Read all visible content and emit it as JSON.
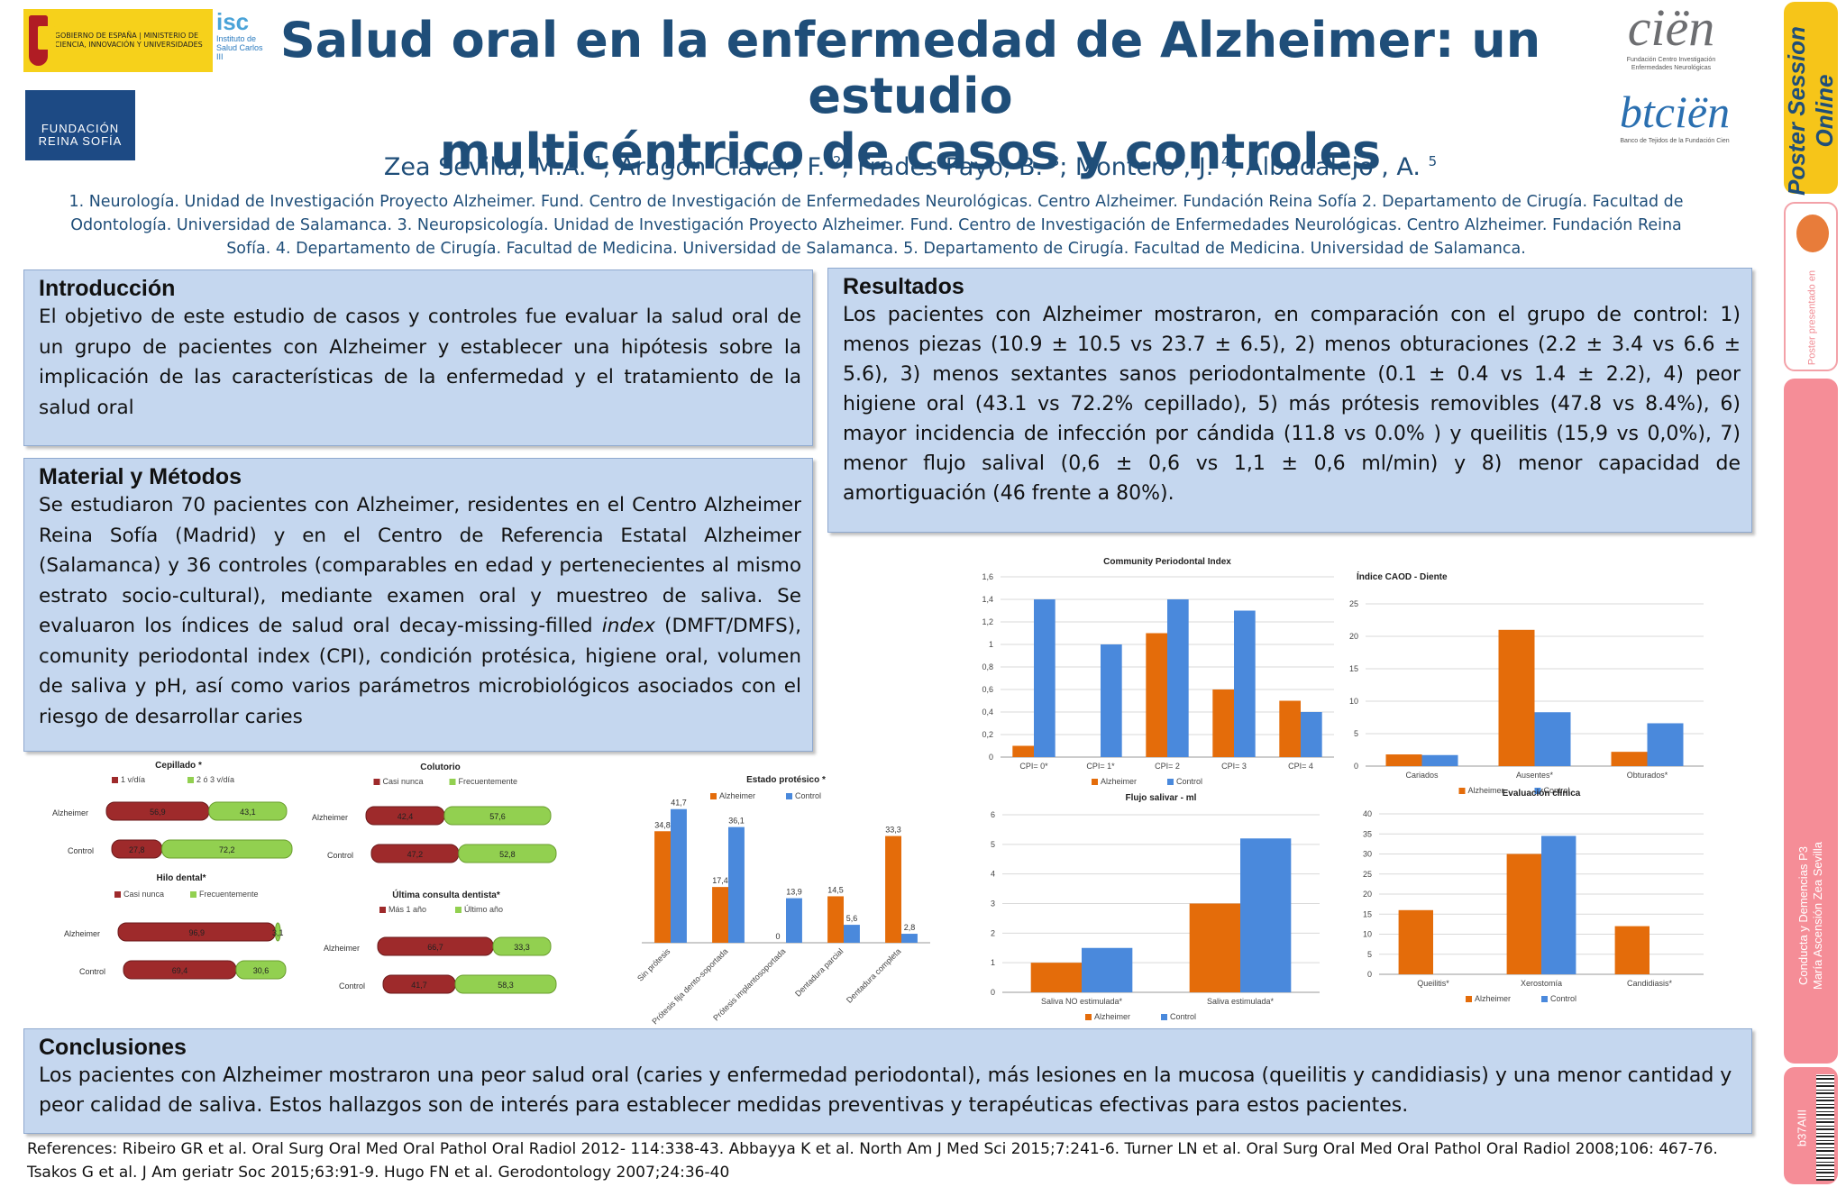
{
  "title_lines": [
    "Salud oral en la enfermedad de Alzheimer: un estudio",
    "multicéntrico de casos y controles"
  ],
  "authors": [
    {
      "name": "Zea Sevilla, M.A. ",
      "sup": "1"
    },
    {
      "name": "; Aragón Claver, F. ",
      "sup": "2"
    },
    {
      "name": "; Frades Payo, B. ",
      "sup": "3"
    },
    {
      "name": "; Montero , J. ",
      "sup": "4"
    },
    {
      "name": "; Albadalejo , A. ",
      "sup": "5"
    }
  ],
  "affiliations": "1. Neurología. Unidad de Investigación Proyecto Alzheimer. Fund. Centro de Investigación de Enfermedades Neurológicas. Centro Alzheimer. Fundación Reina Sofía 2. Departamento de Cirugía. Facultad de Odontología. Universidad de Salamanca. 3. Neuropsicología. Unidad de Investigación Proyecto Alzheimer. Fund. Centro de Investigación de Enfermedades Neurológicas. Centro Alzheimer. Fundación Reina Sofía. 4. Departamento de Cirugía. Facultad de Medicina. Universidad de Salamanca. 5. Departamento de Cirugía. Facultad de Medicina. Universidad de Salamanca.",
  "logos": {
    "gobierno": "GOBIERNO DE ESPAÑA | MINISTERIO DE CIENCIA, INNOVACIÓN Y UNIVERSIDADES",
    "isciii_mark": "isc",
    "isciii": "Instituto de Salud Carlos III",
    "fundacion": "FUNDACIÓN REINA SOFÍA",
    "cien": "ciën",
    "cien_sub": "Fundación Centro Investigación Enfermedades Neurológicas",
    "btcien": "btciën",
    "btcien_sub": "Banco de Tejidos de la Fundación Cien"
  },
  "intro": {
    "heading": "Introducción",
    "text": "El objetivo de este estudio de casos y controles fue evaluar la salud oral de un grupo de pacientes con Alzheimer y establecer una hipótesis sobre la implicación de las características de la enfermedad y el tratamiento de la salud oral"
  },
  "methods": {
    "heading": "Material y Métodos",
    "text_before": "Se estudiaron 70 pacientes con Alzheimer, residentes en el Centro Alzheimer Reina Sofía (Madrid) y en el Centro de Referencia  Estatal Alzheimer (Salamanca) y 36 controles (comparables en edad y pertenecientes al mismo estrato socio-cultural), mediante examen oral y muestreo de saliva. Se evaluaron los índices de salud oral decay-missing-filled ",
    "text_italic": "index",
    "text_after": " (DMFT/DMFS), comunity periodontal index (CPI), condición protésica, higiene oral, volumen de saliva y pH, así como varios parámetros microbiológicos asociados con el riesgo de desarrollar caries"
  },
  "results": {
    "heading": "Resultados",
    "text": "Los pacientes con Alzheimer mostraron, en comparación con el grupo de control: 1) menos piezas (10.9 ± 10.5 vs 23.7 ± 6.5), 2) menos obturaciones (2.2 ± 3.4 vs 6.6 ± 5.6), 3) menos sextantes sanos periodontalmente (0.1 ± 0.4 vs 1.4 ± 2.2), 4) peor higiene oral (43.1 vs 72.2% cepillado), 5) más prótesis removibles (47.8 vs 8.4%), 6) mayor incidencia de infección por cándida (11.8 vs 0.0% ) y queilitis (15,9 vs 0,0%), 7) menor flujo salival (0,6 ± 0,6 vs 1,1 ± 0,6 ml/min) y 8) menor capacidad de amortiguación (46 frente a 80%)."
  },
  "conclusions": {
    "heading": "Conclusiones",
    "text": "Los pacientes con Alzheimer mostraron una peor salud oral (caries y enfermedad periodontal), más lesiones en la mucosa (queilitis y candidiasis) y una menor cantidad y peor calidad de saliva. Estos hallazgos son de interés para establecer medidas preventivas y terapéuticas efectivas para estos pacientes."
  },
  "references": "References: Ribeiro GR et al. Oral Surg Oral Med Oral Pathol Oral Radiol 2012- 114:338-43. Abbayya K et al. North Am J Med Sci 2015;7:241-6. Turner LN et al. Oral Surg Oral Med Oral Pathol Oral Radiol 2008;106: 467-76. Tsakos G et al. J Am geriatr Soc 2015;63:91-9. Hugo FN et al. Gerodontology 2007;24:36-40",
  "sidebar": {
    "brand": "Poster Session Online",
    "presented": "Poster presentado en",
    "event": "Conducta y Demencias P3",
    "author": "María Ascensión Zea Sevilla",
    "code": "b37AIII"
  },
  "colors": {
    "alzheimer": "#e46c0a",
    "control": "#4a89dc",
    "casi_nunca": "#9e2a2b",
    "frecuente": "#92d050"
  },
  "chart_data": [
    {
      "id": "cpi",
      "type": "bar",
      "title": "Community Periodontal Index",
      "categories": [
        "CPI= 0*",
        "CPI= 1*",
        "CPI= 2",
        "CPI= 3",
        "CPI= 4"
      ],
      "series": [
        {
          "name": "Alzheimer",
          "values": [
            0.1,
            0,
            1.1,
            0.6,
            0.5
          ]
        },
        {
          "name": "Control",
          "values": [
            1.4,
            1.0,
            1.4,
            1.3,
            0.4
          ]
        }
      ],
      "ylim": [
        0,
        1.6
      ],
      "yticks": [
        "0",
        "0,2",
        "0,4",
        "0,6",
        "0,8",
        "1",
        "1,2",
        "1,4",
        "1,6"
      ],
      "grid": true,
      "legend": "bottom"
    },
    {
      "id": "caod",
      "type": "bar",
      "title": "Índice CAOD - Diente",
      "categories": [
        "Cariados",
        "Ausentes*",
        "Obturados*"
      ],
      "series": [
        {
          "name": "Alzheimer",
          "values": [
            1.8,
            21,
            2.2
          ]
        },
        {
          "name": "Control",
          "values": [
            1.7,
            8.3,
            6.6
          ]
        }
      ],
      "ylim": [
        0,
        25
      ],
      "yticks": [
        "0",
        "5",
        "10",
        "15",
        "20",
        "25"
      ],
      "grid": true,
      "legend": "bottom"
    },
    {
      "id": "protesis",
      "type": "bar",
      "title": "Estado protésico *",
      "categories": [
        "Sin prótesis",
        "Prótesis fija dento-soportada",
        "Prótesis implantosoportada",
        "Dentadura parcial",
        "Dentadura completa"
      ],
      "series": [
        {
          "name": "Alzheimer",
          "values": [
            34.8,
            17.4,
            0,
            14.5,
            33.3
          ],
          "labels": [
            "34,8",
            "17,4",
            "0",
            "14,5",
            "33,3"
          ]
        },
        {
          "name": "Control",
          "values": [
            41.7,
            36.1,
            13.9,
            5.6,
            2.8
          ],
          "labels": [
            "41,7",
            "36,1",
            "13,9",
            "5,6",
            "2,8"
          ]
        }
      ],
      "ylim": [
        0,
        45
      ],
      "legend": "top"
    },
    {
      "id": "flujo",
      "type": "bar",
      "title": "Flujo salivar - ml",
      "categories": [
        "Saliva NO estimulada*",
        "Saliva estimulada*"
      ],
      "series": [
        {
          "name": "Alzheimer",
          "values": [
            1.0,
            3.0
          ]
        },
        {
          "name": "Control",
          "values": [
            1.5,
            5.2
          ]
        }
      ],
      "ylim": [
        0,
        6
      ],
      "yticks": [
        "0",
        "1",
        "2",
        "3",
        "4",
        "5",
        "6"
      ],
      "grid": true,
      "legend": "bottom"
    },
    {
      "id": "clinica",
      "type": "bar",
      "title": "Evaluación clínica",
      "categories": [
        "Queilitis*",
        "Xerostomía",
        "Candidiasis*"
      ],
      "series": [
        {
          "name": "Alzheimer",
          "values": [
            16,
            30,
            12
          ]
        },
        {
          "name": "Control",
          "values": [
            0,
            34.5,
            0
          ]
        }
      ],
      "ylim": [
        0,
        40
      ],
      "yticks": [
        "0",
        "5",
        "10",
        "15",
        "20",
        "25",
        "30",
        "35",
        "40"
      ],
      "grid": true,
      "legend": "bottom"
    },
    {
      "id": "cepillado",
      "type": "stacked-bar",
      "title": "Cepillado *",
      "legend_items": [
        "1 v/día",
        "2 ó 3 v/día"
      ],
      "rows": [
        "Alzheimer",
        "Control"
      ],
      "values": [
        [
          56.9,
          43.1
        ],
        [
          27.8,
          72.2
        ]
      ],
      "labels": [
        [
          "56,9",
          "43,1"
        ],
        [
          "27,8",
          "72,2"
        ]
      ]
    },
    {
      "id": "colutorio",
      "type": "stacked-bar",
      "title": "Colutorio",
      "legend_items": [
        "Casi nunca",
        "Frecuentemente"
      ],
      "rows": [
        "Alzheimer",
        "Control"
      ],
      "values": [
        [
          42.4,
          57.6
        ],
        [
          47.2,
          52.8
        ]
      ],
      "labels": [
        [
          "42,4",
          "57,6"
        ],
        [
          "47,2",
          "52,8"
        ]
      ]
    },
    {
      "id": "hilo",
      "type": "stacked-bar",
      "title": "Hilo dental*",
      "legend_items": [
        "Casi nunca",
        "Frecuentemente"
      ],
      "rows": [
        "Alzheimer",
        "Control"
      ],
      "values": [
        [
          96.9,
          3.1
        ],
        [
          69.4,
          30.6
        ]
      ],
      "labels": [
        [
          "96,9",
          "3,1"
        ],
        [
          "69,4",
          "30,6"
        ]
      ]
    },
    {
      "id": "consulta",
      "type": "stacked-bar",
      "title": "Última consulta dentista*",
      "legend_items": [
        "Más 1 año",
        "Último año"
      ],
      "rows": [
        "Alzheimer",
        "Control"
      ],
      "values": [
        [
          66.7,
          33.3
        ],
        [
          41.7,
          58.3
        ]
      ],
      "labels": [
        [
          "66,7",
          "33,3"
        ],
        [
          "41,7",
          "58,3"
        ]
      ]
    }
  ]
}
